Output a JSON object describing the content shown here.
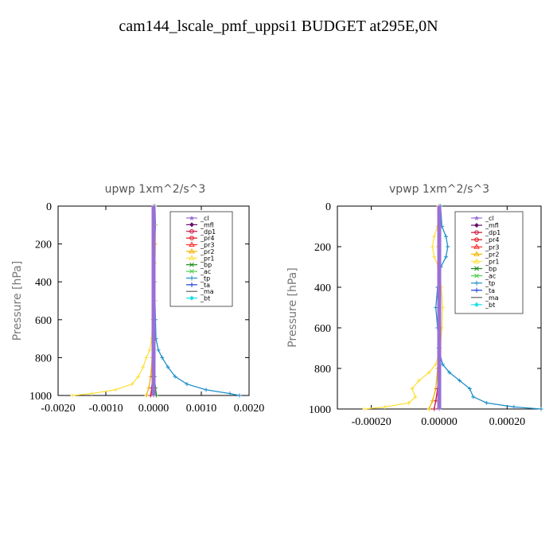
{
  "title": "cam144_lscale_pmf_uppsi1  BUDGET at295E,0N",
  "colors": {
    "_cl": "#9b6fd6",
    "_mfl": "#6a0f6a",
    "_dp1": "#c8103c",
    "_pr4": "#e0101a",
    "_pr3": "#ff2a2a",
    "_pr2": "#f0b400",
    "_pr1": "#ffe040",
    "_bp": "#1a8a1a",
    "_ac": "#4cd04c",
    "_tp": "#1e8fc8",
    "_ta": "#2040e0",
    "_ma": "#606060",
    "_bt": "#18e0e8"
  },
  "chart_data": [
    {
      "type": "line",
      "title": "upwp   1xm^2/s^3",
      "ylabel": "Pressure  [hPa]",
      "xlim": [
        -0.002,
        0.002
      ],
      "ylim": [
        1000,
        0
      ],
      "xticks": [
        "-0.0020",
        "-0.0010",
        "0.0000",
        "0.0010",
        "0.0020"
      ],
      "yticks": [
        "0",
        "200",
        "400",
        "600",
        "800",
        "1000"
      ],
      "legend": [
        "_cl",
        "_mfl",
        "_dp1",
        "_pr4",
        "_pr3",
        "_pr2",
        "_pr1",
        "_bp",
        "_ac",
        "_tp",
        "_ta",
        "_ma",
        "_bt"
      ],
      "legend_position": "top-right",
      "series": [
        {
          "name": "_tp",
          "y": [
            0,
            100,
            200,
            300,
            400,
            500,
            600,
            700,
            760,
            800,
            850,
            900,
            940,
            970,
            990,
            1000
          ],
          "values": [
            3e-05,
            4e-05,
            3e-05,
            2e-05,
            3e-05,
            3e-05,
            4e-05,
            5e-05,
            0.0001,
            0.00018,
            0.0003,
            0.00045,
            0.0007,
            0.0011,
            0.0016,
            0.0018
          ]
        },
        {
          "name": "_pr1",
          "y": [
            0,
            100,
            200,
            300,
            400,
            500,
            600,
            700,
            760,
            800,
            850,
            900,
            940,
            970,
            990,
            1000
          ],
          "values": [
            2e-05,
            3e-05,
            4e-05,
            3e-05,
            2e-05,
            2e-05,
            -2e-05,
            -4e-05,
            -8e-05,
            -0.00015,
            -0.00022,
            -0.00032,
            -0.00045,
            -0.0008,
            -0.0013,
            -0.0017
          ]
        },
        {
          "name": "_pr2",
          "y": [
            0,
            200,
            400,
            600,
            800,
            900,
            960,
            1000
          ],
          "values": [
            0.0,
            1e-05,
            0.0,
            -1e-05,
            -3e-05,
            -6e-05,
            -0.0001,
            -0.00015
          ]
        },
        {
          "name": "_dp1",
          "y": [
            0,
            200,
            400,
            600,
            800,
            900,
            960,
            1000
          ],
          "values": [
            0.0,
            0.0,
            0.0,
            0.0,
            0.0,
            -2e-05,
            -4e-05,
            -6e-05
          ]
        },
        {
          "name": "_bp",
          "y": [
            0,
            200,
            400,
            600,
            800,
            900,
            960,
            1000
          ],
          "values": [
            0.0,
            0.0,
            0.0,
            0.0,
            0.0,
            2e-05,
            4e-05,
            6e-05
          ]
        },
        {
          "name": "_mfl",
          "y": [
            0,
            200,
            400,
            600,
            800,
            1000
          ],
          "values": [
            0.0,
            0.0,
            0.0,
            0.0,
            0.0,
            0.0
          ]
        },
        {
          "name": "_cl",
          "y": [
            0,
            200,
            400,
            600,
            800,
            1000
          ],
          "values": [
            0.0,
            0.0,
            0.0,
            0.0,
            0.0,
            0.0
          ]
        }
      ]
    },
    {
      "type": "line",
      "title": "vpwp   1xm^2/s^3",
      "ylabel": "Pressure  [hPa]",
      "xlim": [
        -0.0003,
        0.0003
      ],
      "ylim": [
        1000,
        0
      ],
      "xticks": [
        "-0.00020",
        "0.00000",
        "0.00020"
      ],
      "yticks": [
        "0",
        "200",
        "400",
        "600",
        "800",
        "1000"
      ],
      "legend": [
        "_cl",
        "_mfl",
        "_dp1",
        "_pr4",
        "_pr3",
        "_pr2",
        "_pr1",
        "_bp",
        "_ac",
        "_tp",
        "_ta",
        "_ma",
        "_bt"
      ],
      "legend_position": "top-right",
      "series": [
        {
          "name": "_tp",
          "y": [
            0,
            100,
            150,
            200,
            250,
            300,
            400,
            500,
            600,
            700,
            780,
            820,
            860,
            900,
            940,
            970,
            990,
            1000
          ],
          "values": [
            4e-06,
            8e-06,
            2e-05,
            2.5e-05,
            2e-05,
            5e-06,
            -5e-06,
            -1e-05,
            -5e-06,
            -2e-06,
            1e-05,
            3e-05,
            6e-05,
            9e-05,
            0.0001,
            0.00014,
            0.00022,
            0.0003
          ]
        },
        {
          "name": "_pr1",
          "y": [
            0,
            100,
            150,
            200,
            250,
            300,
            400,
            500,
            600,
            700,
            780,
            820,
            860,
            900,
            940,
            970,
            990,
            1000
          ],
          "values": [
            -2e-06,
            -5e-06,
            -1.5e-05,
            -2e-05,
            -1.5e-05,
            -2e-06,
            6e-06,
            1e-05,
            8e-06,
            3e-06,
            -1e-05,
            -3e-05,
            -6e-05,
            -8e-05,
            -7e-05,
            -9e-05,
            -0.00016,
            -0.00022
          ]
        },
        {
          "name": "_pr2",
          "y": [
            0,
            200,
            400,
            600,
            800,
            900,
            960,
            1000
          ],
          "values": [
            0.0,
            -3e-06,
            0.0,
            2e-06,
            -5e-06,
            -1e-05,
            -2e-05,
            -3e-05
          ]
        },
        {
          "name": "_dp1",
          "y": [
            0,
            200,
            400,
            600,
            800,
            900,
            960,
            1000
          ],
          "values": [
            0.0,
            0.0,
            0.0,
            0.0,
            0.0,
            -5e-06,
            -1e-05,
            -1.5e-05
          ]
        },
        {
          "name": "_mfl",
          "y": [
            0,
            200,
            400,
            600,
            800,
            1000
          ],
          "values": [
            0.0,
            0.0,
            0.0,
            0.0,
            0.0,
            0.0
          ]
        },
        {
          "name": "_cl",
          "y": [
            0,
            200,
            400,
            600,
            800,
            1000
          ],
          "values": [
            0.0,
            0.0,
            0.0,
            0.0,
            0.0,
            0.0
          ]
        }
      ]
    }
  ]
}
